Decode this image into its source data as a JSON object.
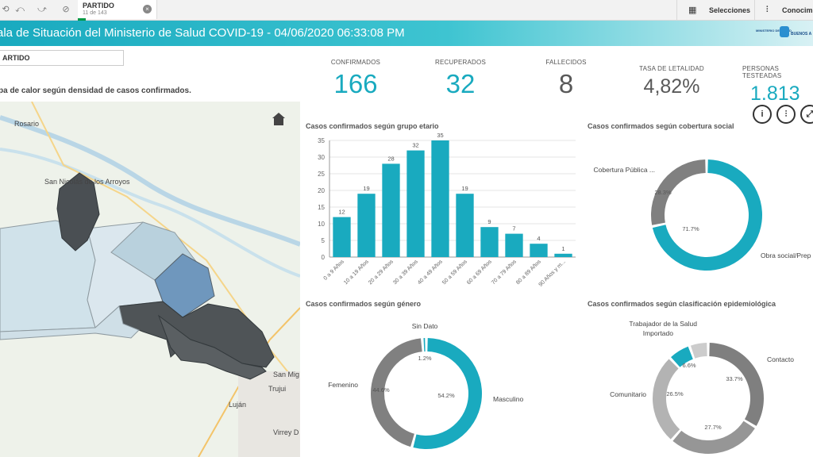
{
  "toolbar": {
    "selection_field": "PARTIDO",
    "selection_count": "11 de 143",
    "selections_label": "Selecciones",
    "insights_label": "Conocimi"
  },
  "header": {
    "title": "ala de Situación del Ministerio de Salud COVID-19 - 04/06/2020 06:33:08 PM",
    "logo_ministry": "MINISTERIO DE SALUD",
    "logo_province": "BUENOS A"
  },
  "filter": {
    "label": "ARTIDO"
  },
  "map": {
    "title": "pa de calor según densidad de casos confirmados.",
    "places": [
      "Rosario",
      "San Nicolás de los Arroyos",
      "San Mig",
      "Trujui",
      "Luján",
      "Virrey D"
    ]
  },
  "kpis": [
    {
      "label": "CONFIRMADOS",
      "value": "166",
      "color": "#19aabf"
    },
    {
      "label": "RECUPERADOS",
      "value": "32",
      "color": "#19aabf"
    },
    {
      "label": "FALLECIDOS",
      "value": "8",
      "color": "#595959"
    },
    {
      "label": "TASA DE LETALIDAD",
      "value": "4,82%",
      "color": "#595959"
    },
    {
      "label": "PERSONAS TESTEADAS",
      "value": "1.813",
      "color": "#19aabf"
    }
  ],
  "chart_data": [
    {
      "type": "bar",
      "title": "Casos confirmados según grupo etario",
      "categories": [
        "0 a 9 Años",
        "10 a 19 Años",
        "20 a 29 Años",
        "30 a 39 Años",
        "40 a 49 Años",
        "50 a 59 Años",
        "60 a 69 Años",
        "70 a 79 Años",
        "80 a 89 Años",
        "90 Años y m..."
      ],
      "values": [
        12,
        19,
        28,
        32,
        35,
        19,
        9,
        7,
        4,
        1
      ],
      "ylim": [
        0,
        35
      ],
      "yticks": [
        0,
        5,
        10,
        15,
        20,
        25,
        30,
        35
      ],
      "color": "#19aabf"
    },
    {
      "type": "pie",
      "title": "Casos confirmados según cobertura social",
      "labels": [
        "Obra social/Prep",
        "Cobertura Pública ..."
      ],
      "values": [
        71.7,
        28.3
      ],
      "value_labels": [
        "71.7%",
        "28.3%"
      ],
      "colors": [
        "#19aabf",
        "#808080"
      ]
    },
    {
      "type": "pie",
      "title": "Casos confirmados según género",
      "labels": [
        "Masculino",
        "Femenino",
        "Sin Dato"
      ],
      "values": [
        54.2,
        44.6,
        1.2
      ],
      "value_labels": [
        "54.2%",
        "44.6%",
        "1.2%"
      ],
      "colors": [
        "#19aabf",
        "#808080",
        "#19aabf"
      ]
    },
    {
      "type": "pie",
      "title": "Casos confirmados según clasificación epidemiológica",
      "labels": [
        "Contacto",
        "",
        "Comunitario",
        "Importado",
        "Trabajador de la Salud"
      ],
      "values": [
        33.7,
        27.7,
        26.5,
        6.6,
        5.5
      ],
      "value_labels": [
        "33.7%",
        "27.7%",
        "26.5%",
        "6.6%",
        ""
      ],
      "colors": [
        "#7f7f7f",
        "#969696",
        "#b3b3b3",
        "#19aabf",
        "#cccccc"
      ]
    }
  ]
}
